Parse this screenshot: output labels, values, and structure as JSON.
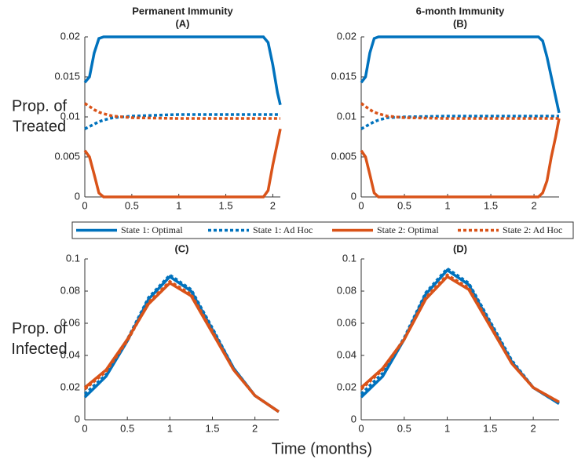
{
  "shared_x_label": "Time (months)",
  "chart_data": [
    {
      "type": "line",
      "title": "Permanent Immunity",
      "subtitle": "(A)",
      "y_label": [
        "Prop. of",
        "Treated"
      ],
      "x": [
        0,
        0.05,
        0.1,
        0.15,
        0.2,
        0.3,
        0.5,
        1,
        1.5,
        1.85,
        1.9,
        1.95,
        2,
        2.05,
        2.08
      ],
      "xlim": [
        0,
        2.08
      ],
      "xticks": [
        0,
        0.5,
        1,
        1.5,
        2
      ],
      "ylim": [
        0,
        0.02
      ],
      "yticks": [
        0,
        0.005,
        0.01,
        0.015,
        0.02
      ],
      "series": [
        {
          "name": "State 1: Optimal",
          "color": "#0072bd",
          "dashed": false,
          "values": [
            0.0143,
            0.015,
            0.018,
            0.0198,
            0.02,
            0.02,
            0.02,
            0.02,
            0.02,
            0.02,
            0.02,
            0.0193,
            0.0165,
            0.013,
            0.0115
          ]
        },
        {
          "name": "State 1: Ad Hoc",
          "color": "#0072bd",
          "dashed": true,
          "values": [
            0.0085,
            0.0088,
            0.0091,
            0.0094,
            0.0096,
            0.0099,
            0.0101,
            0.0103,
            0.0103,
            0.0103,
            0.0103,
            0.0103,
            0.0103,
            0.0103,
            0.0103
          ]
        },
        {
          "name": "State 2: Optimal",
          "color": "#d95319",
          "dashed": false,
          "values": [
            0.0058,
            0.005,
            0.0028,
            0.0005,
            0,
            0,
            0,
            0,
            0,
            0,
            0,
            0.0008,
            0.004,
            0.0068,
            0.0085
          ]
        },
        {
          "name": "State 2: Ad Hoc",
          "color": "#d95319",
          "dashed": true,
          "values": [
            0.0117,
            0.0113,
            0.0109,
            0.0106,
            0.0104,
            0.0101,
            0.0099,
            0.0098,
            0.0098,
            0.0098,
            0.0098,
            0.0098,
            0.0098,
            0.0098,
            0.0098
          ]
        }
      ]
    },
    {
      "type": "line",
      "title": "6-month Immunity",
      "subtitle": "(B)",
      "x": [
        0,
        0.05,
        0.1,
        0.15,
        0.2,
        0.3,
        0.5,
        1,
        1.5,
        2,
        2.05,
        2.1,
        2.15,
        2.2,
        2.25,
        2.29
      ],
      "xlim": [
        0,
        2.29
      ],
      "xticks": [
        0,
        0.5,
        1,
        1.5,
        2
      ],
      "ylim": [
        0,
        0.02
      ],
      "yticks": [
        0,
        0.005,
        0.01,
        0.015,
        0.02
      ],
      "series": [
        {
          "color": "#0072bd",
          "dashed": false,
          "values": [
            0.0143,
            0.015,
            0.018,
            0.0198,
            0.02,
            0.02,
            0.02,
            0.02,
            0.02,
            0.02,
            0.02,
            0.0195,
            0.0175,
            0.015,
            0.0125,
            0.0105
          ]
        },
        {
          "color": "#0072bd",
          "dashed": true,
          "values": [
            0.0085,
            0.0088,
            0.0091,
            0.0094,
            0.0096,
            0.0099,
            0.01,
            0.0101,
            0.0101,
            0.0101,
            0.0101,
            0.0101,
            0.0101,
            0.0101,
            0.0101,
            0.0101
          ]
        },
        {
          "color": "#d95319",
          "dashed": false,
          "values": [
            0.0058,
            0.005,
            0.0028,
            0.0005,
            0,
            0,
            0,
            0,
            0,
            0,
            0,
            0.0005,
            0.002,
            0.005,
            0.0075,
            0.0098
          ]
        },
        {
          "color": "#d95319",
          "dashed": true,
          "values": [
            0.0117,
            0.0113,
            0.0109,
            0.0106,
            0.0104,
            0.0101,
            0.0099,
            0.0098,
            0.0098,
            0.0098,
            0.0098,
            0.0098,
            0.0098,
            0.0098,
            0.0098,
            0.0098
          ]
        }
      ]
    },
    {
      "type": "line",
      "title": "(C)",
      "y_label": [
        "Prop. of",
        "Infected"
      ],
      "x": [
        0,
        0.25,
        0.5,
        0.75,
        1,
        1.25,
        1.5,
        1.75,
        2,
        2.28
      ],
      "xlim": [
        0,
        2.28
      ],
      "xticks": [
        0,
        0.5,
        1,
        1.5,
        2
      ],
      "ylim": [
        0,
        0.1
      ],
      "yticks": [
        0,
        0.02,
        0.04,
        0.06,
        0.08,
        0.1
      ],
      "series": [
        {
          "color": "#0072bd",
          "dashed": false,
          "values": [
            0.014,
            0.027,
            0.049,
            0.075,
            0.089,
            0.08,
            0.056,
            0.032,
            0.015,
            0.005
          ]
        },
        {
          "color": "#0072bd",
          "dashed": true,
          "values": [
            0.016,
            0.028,
            0.05,
            0.076,
            0.09,
            0.081,
            0.057,
            0.032,
            0.015,
            0.005
          ]
        },
        {
          "color": "#d95319",
          "dashed": false,
          "values": [
            0.02,
            0.031,
            0.05,
            0.072,
            0.085,
            0.077,
            0.054,
            0.031,
            0.015,
            0.005
          ]
        },
        {
          "color": "#d95319",
          "dashed": true,
          "values": [
            0.019,
            0.03,
            0.049,
            0.073,
            0.086,
            0.078,
            0.055,
            0.031,
            0.015,
            0.005
          ]
        }
      ]
    },
    {
      "type": "line",
      "title": "(D)",
      "x": [
        0,
        0.25,
        0.5,
        0.75,
        1,
        1.25,
        1.5,
        1.75,
        2,
        2.3
      ],
      "xlim": [
        0,
        2.3
      ],
      "xticks": [
        0,
        0.5,
        1,
        1.5,
        2
      ],
      "ylim": [
        0,
        0.1
      ],
      "yticks": [
        0,
        0.02,
        0.04,
        0.06,
        0.08,
        0.1
      ],
      "series": [
        {
          "color": "#0072bd",
          "dashed": false,
          "values": [
            0.014,
            0.027,
            0.05,
            0.078,
            0.093,
            0.084,
            0.06,
            0.036,
            0.02,
            0.01
          ]
        },
        {
          "color": "#0072bd",
          "dashed": true,
          "values": [
            0.016,
            0.029,
            0.051,
            0.079,
            0.094,
            0.085,
            0.061,
            0.037,
            0.02,
            0.01
          ]
        },
        {
          "color": "#d95319",
          "dashed": false,
          "values": [
            0.02,
            0.032,
            0.05,
            0.075,
            0.089,
            0.081,
            0.058,
            0.035,
            0.02,
            0.011
          ]
        },
        {
          "color": "#d95319",
          "dashed": true,
          "values": [
            0.019,
            0.031,
            0.05,
            0.076,
            0.09,
            0.082,
            0.059,
            0.035,
            0.02,
            0.011
          ]
        }
      ]
    }
  ]
}
